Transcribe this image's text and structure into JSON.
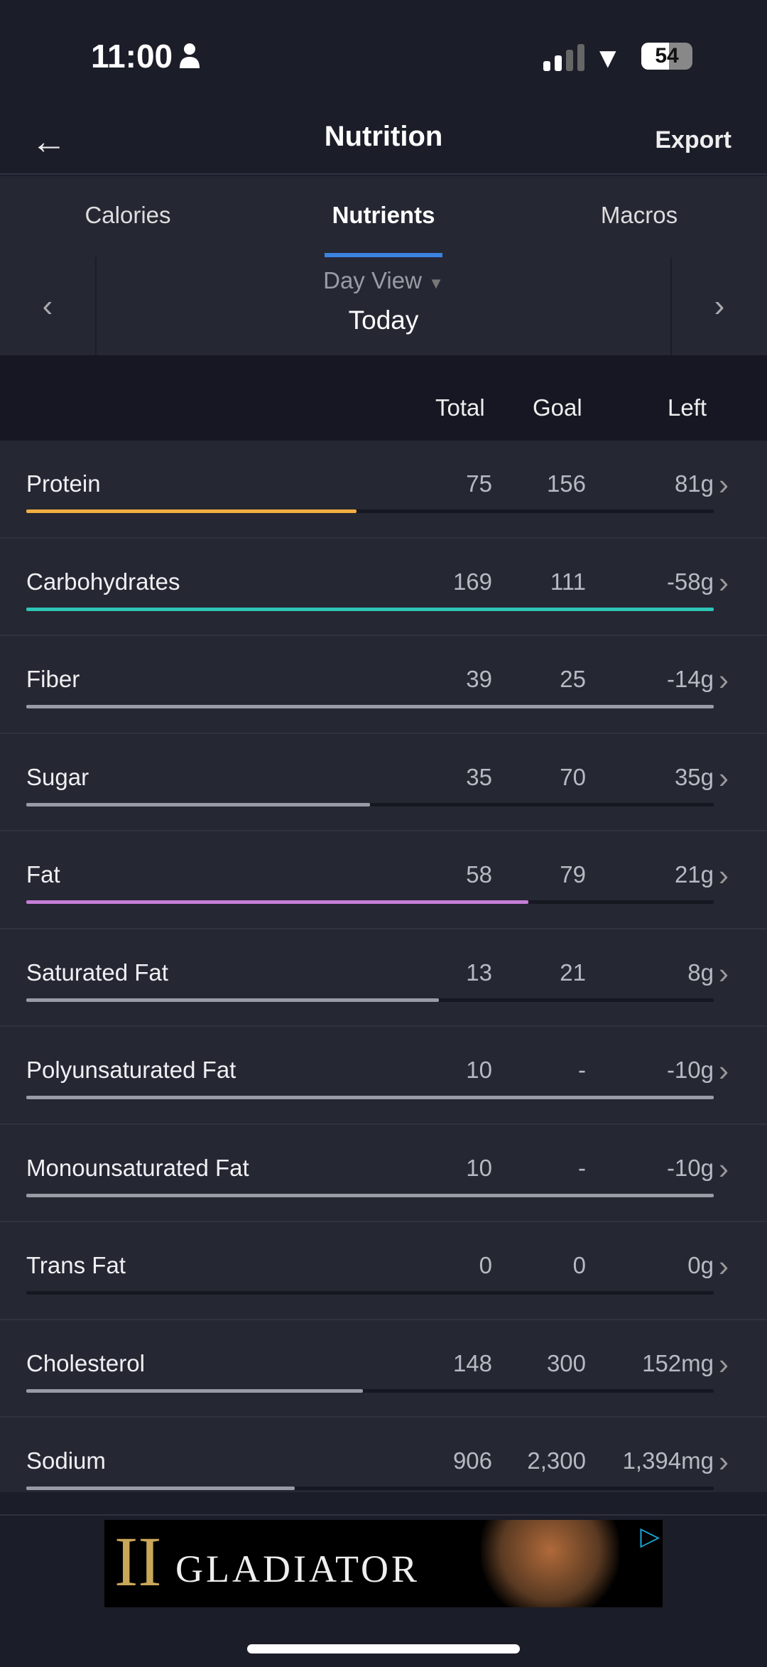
{
  "status": {
    "time": "11:00",
    "battery": "54",
    "battery_level": 54
  },
  "nav": {
    "title": "Nutrition",
    "export": "Export"
  },
  "tabs": [
    {
      "label": "Calories"
    },
    {
      "label": "Nutrients",
      "active": true
    },
    {
      "label": "Macros"
    }
  ],
  "date": {
    "view": "Day View",
    "label": "Today"
  },
  "columns": {
    "total": "Total",
    "goal": "Goal",
    "left": "Left"
  },
  "nutrients": [
    {
      "name": "Protein",
      "total": "75",
      "goal": "156",
      "left": "81g",
      "progress": 0.48,
      "color": "#f0b040"
    },
    {
      "name": "Carbohydrates",
      "total": "169",
      "goal": "111",
      "left": "-58g",
      "progress": 1,
      "color": "#2ec4b6"
    },
    {
      "name": "Fiber",
      "total": "39",
      "goal": "25",
      "left": "-14g",
      "progress": 1,
      "color": "#9a9ca5"
    },
    {
      "name": "Sugar",
      "total": "35",
      "goal": "70",
      "left": "35g",
      "progress": 0.5,
      "color": "#9a9ca5"
    },
    {
      "name": "Fat",
      "total": "58",
      "goal": "79",
      "left": "21g",
      "progress": 0.73,
      "color": "#c77dd8"
    },
    {
      "name": "Saturated Fat",
      "total": "13",
      "goal": "21",
      "left": "8g",
      "progress": 0.6,
      "color": "#9a9ca5"
    },
    {
      "name": "Polyunsaturated Fat",
      "total": "10",
      "goal": "-",
      "left": "-10g",
      "progress": 1,
      "color": "#9a9ca5"
    },
    {
      "name": "Monounsaturated Fat",
      "total": "10",
      "goal": "-",
      "left": "-10g",
      "progress": 1,
      "color": "#9a9ca5"
    },
    {
      "name": "Trans Fat",
      "total": "0",
      "goal": "0",
      "left": "0g",
      "progress": 0,
      "color": "#9a9ca5"
    },
    {
      "name": "Cholesterol",
      "total": "148",
      "goal": "300",
      "left": "152mg",
      "progress": 0.49,
      "color": "#9a9ca5"
    },
    {
      "name": "Sodium",
      "total": "906",
      "goal": "2,300",
      "left": "1,394mg",
      "progress": 0.39,
      "color": "#9a9ca5"
    }
  ],
  "ad": {
    "title": "GLADIATOR",
    "numeral": "II"
  }
}
